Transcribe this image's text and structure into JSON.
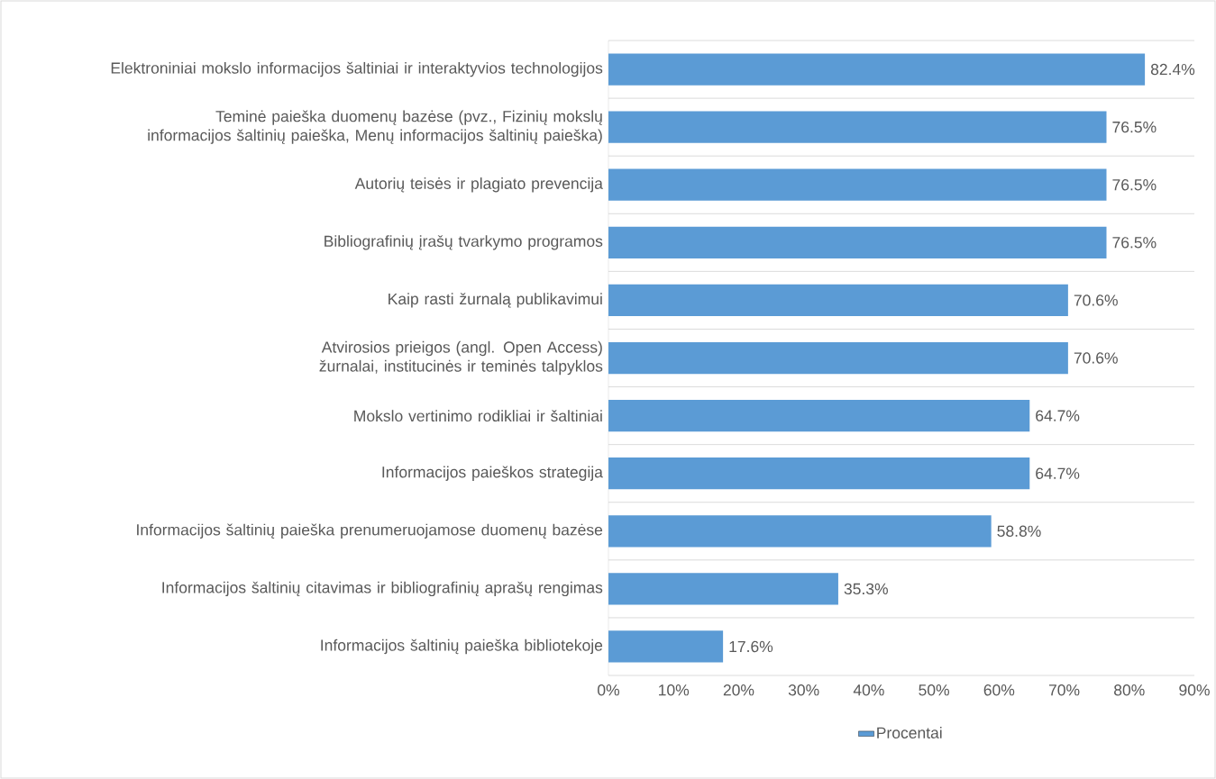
{
  "chart_data": {
    "type": "bar",
    "orientation": "horizontal",
    "categories": [
      "Elektroniniai mokslo informacijos šaltiniai ir interaktyvios technologijos",
      "Teminė paieška duomenų bazėse (pvz., Fizinių mokslų informacijos šaltinių paieška, Menų informacijos šaltinių paieška)",
      "Autorių teisės ir plagiato prevencija",
      "Bibliografinių įrašų tvarkymo programos",
      "Kaip rasti žurnalą publikavimui",
      "Atvirosios prieigos (angl. Open Access) žurnalai, institucinės ir teminės talpyklos",
      "Mokslo vertinimo rodikliai ir šaltiniai",
      "Informacijos paieškos strategija",
      "Informacijos šaltinių paieška prenumeruojamose duomenų bazėse",
      "Informacijos šaltinių citavimas ir bibliografinių aprašų rengimas",
      "Informacijos šaltinių paieška bibliotekoje"
    ],
    "series": [
      {
        "name": "Procentai",
        "color": "#5b9bd5",
        "values": [
          82.4,
          76.5,
          76.5,
          76.5,
          70.6,
          70.6,
          64.7,
          64.7,
          58.8,
          35.3,
          17.6
        ],
        "value_labels": [
          "82.4%",
          "76.5%",
          "76.5%",
          "76.5%",
          "70.6%",
          "70.6%",
          "64.7%",
          "64.7%",
          "58.8%",
          "35.3%",
          "17.6%"
        ]
      }
    ],
    "xlim": [
      0,
      90
    ],
    "xticks": [
      {
        "value": 0,
        "label": "0%"
      },
      {
        "value": 10,
        "label": "10%"
      },
      {
        "value": 20,
        "label": "20%"
      },
      {
        "value": 30,
        "label": "30%"
      },
      {
        "value": 40,
        "label": "40%"
      },
      {
        "value": 50,
        "label": "50%"
      },
      {
        "value": 60,
        "label": "60%"
      },
      {
        "value": 70,
        "label": "70%"
      },
      {
        "value": 80,
        "label": "80%"
      },
      {
        "value": 90,
        "label": "90%"
      }
    ],
    "grid": "y",
    "legend": "bottom"
  }
}
